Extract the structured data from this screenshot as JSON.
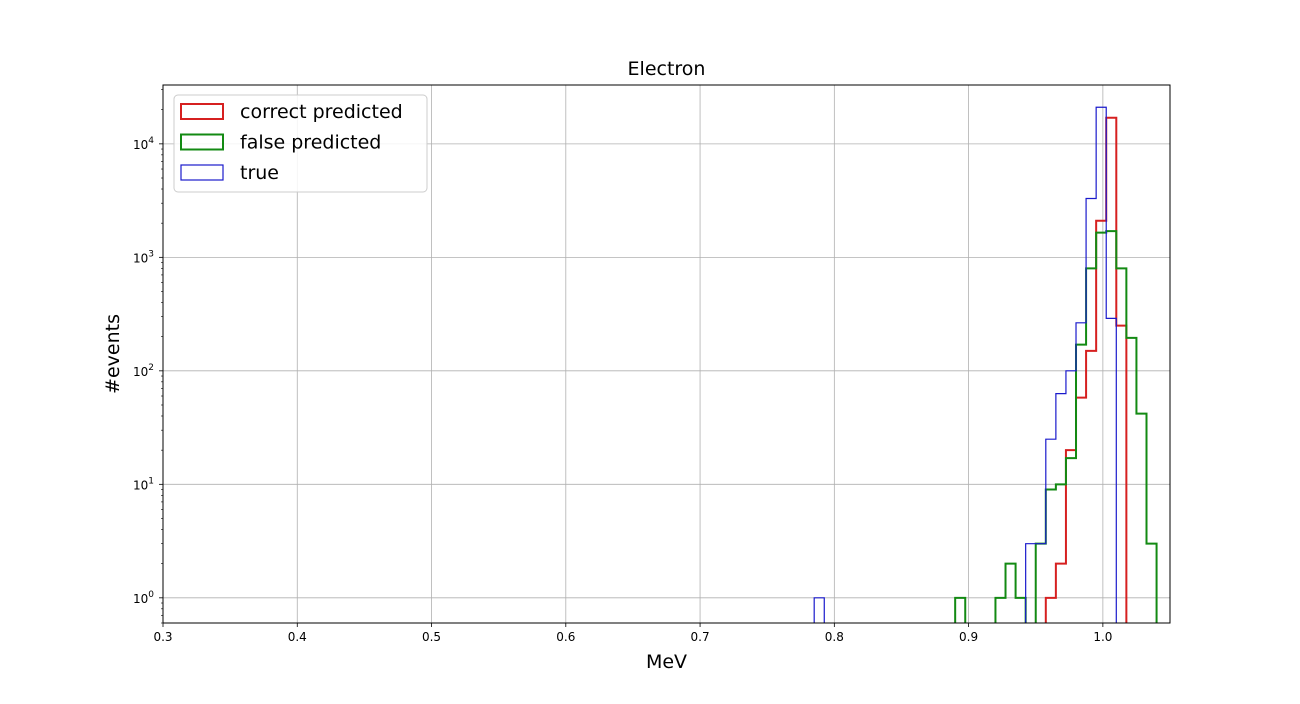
{
  "chart_data": {
    "type": "histogram-step",
    "title": "Electron",
    "xlabel": "MeV",
    "ylabel": "#events",
    "xlim": [
      0.3,
      1.05
    ],
    "ylim": [
      0.6,
      33000
    ],
    "yscale": "log",
    "grid": true,
    "legend_position": "top-left",
    "x_ticks": [
      0.3,
      0.4,
      0.5,
      0.6,
      0.7,
      0.8,
      0.9,
      1.0
    ],
    "x_tick_labels": [
      "0.3",
      "0.4",
      "0.5",
      "0.6",
      "0.7",
      "0.8",
      "0.9",
      "1.0"
    ],
    "y_ticks": [
      1,
      10,
      100,
      1000,
      10000
    ],
    "y_tick_labels": [
      {
        "base": "10",
        "exp": "0"
      },
      {
        "base": "10",
        "exp": "1"
      },
      {
        "base": "10",
        "exp": "2"
      },
      {
        "base": "10",
        "exp": "3"
      },
      {
        "base": "10",
        "exp": "4"
      }
    ],
    "series": [
      {
        "name": "correct predicted",
        "color": "#d62020",
        "stroke_width": 2,
        "bins": [
          {
            "x0": 0.9575,
            "x1": 0.965,
            "y": 1
          },
          {
            "x0": 0.965,
            "x1": 0.9725,
            "y": 2
          },
          {
            "x0": 0.9725,
            "x1": 0.98,
            "y": 20
          },
          {
            "x0": 0.98,
            "x1": 0.9875,
            "y": 58
          },
          {
            "x0": 0.9875,
            "x1": 0.995,
            "y": 150
          },
          {
            "x0": 0.995,
            "x1": 1.0025,
            "y": 2100
          },
          {
            "x0": 1.0025,
            "x1": 1.01,
            "y": 17000
          },
          {
            "x0": 1.01,
            "x1": 1.0175,
            "y": 250
          }
        ]
      },
      {
        "name": "false predicted",
        "color": "#138a13",
        "stroke_width": 2,
        "bins": [
          {
            "x0": 0.89,
            "x1": 0.8975,
            "y": 1
          },
          {
            "x0": 0.92,
            "x1": 0.9275,
            "y": 1
          },
          {
            "x0": 0.9275,
            "x1": 0.935,
            "y": 2
          },
          {
            "x0": 0.935,
            "x1": 0.9425,
            "y": 1
          },
          {
            "x0": 0.95,
            "x1": 0.9575,
            "y": 3
          },
          {
            "x0": 0.9575,
            "x1": 0.965,
            "y": 9
          },
          {
            "x0": 0.965,
            "x1": 0.9725,
            "y": 10
          },
          {
            "x0": 0.9725,
            "x1": 0.98,
            "y": 17
          },
          {
            "x0": 0.98,
            "x1": 0.9875,
            "y": 170
          },
          {
            "x0": 0.9875,
            "x1": 0.995,
            "y": 800
          },
          {
            "x0": 0.995,
            "x1": 1.0025,
            "y": 1650
          },
          {
            "x0": 1.0025,
            "x1": 1.01,
            "y": 1700
          },
          {
            "x0": 1.01,
            "x1": 1.0175,
            "y": 800
          },
          {
            "x0": 1.0175,
            "x1": 1.025,
            "y": 195
          },
          {
            "x0": 1.025,
            "x1": 1.0325,
            "y": 42
          },
          {
            "x0": 1.0325,
            "x1": 1.04,
            "y": 3
          }
        ]
      },
      {
        "name": "true",
        "color": "#1a1acc",
        "stroke_width": 1.2,
        "bins": [
          {
            "x0": 0.785,
            "x1": 0.7925,
            "y": 1
          },
          {
            "x0": 0.9425,
            "x1": 0.95,
            "y": 3
          },
          {
            "x0": 0.95,
            "x1": 0.9575,
            "y": 3
          },
          {
            "x0": 0.9575,
            "x1": 0.965,
            "y": 25
          },
          {
            "x0": 0.965,
            "x1": 0.9725,
            "y": 63
          },
          {
            "x0": 0.9725,
            "x1": 0.98,
            "y": 100
          },
          {
            "x0": 0.98,
            "x1": 0.9875,
            "y": 265
          },
          {
            "x0": 0.9875,
            "x1": 0.995,
            "y": 3300
          },
          {
            "x0": 0.995,
            "x1": 1.0025,
            "y": 21000
          },
          {
            "x0": 1.0025,
            "x1": 1.01,
            "y": 290
          }
        ]
      }
    ]
  }
}
